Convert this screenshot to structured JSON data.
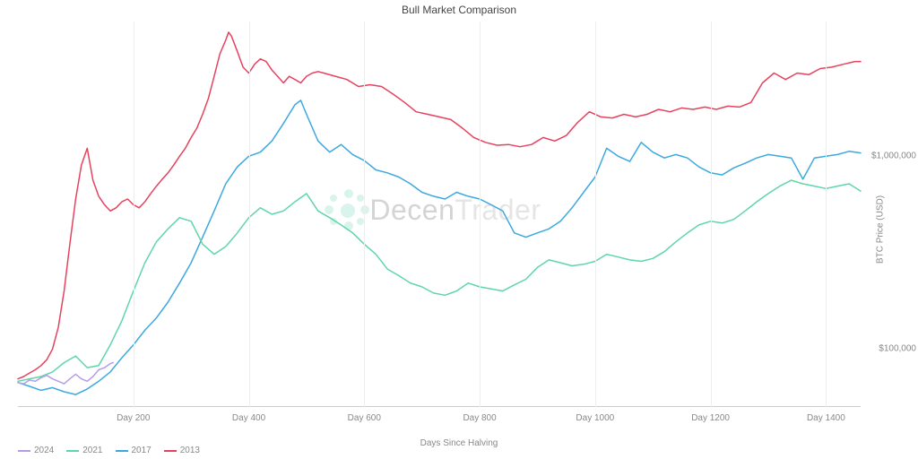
{
  "chart": {
    "type": "line",
    "title": "Bull Market Comparison",
    "title_fontsize": 12,
    "title_color": "#444444",
    "background_color": "#ffffff",
    "grid_color": "#eeeeee",
    "axis_line_color": "#cccccc",
    "tick_label_color": "#888888",
    "tick_label_fontsize": 10,
    "x_axis": {
      "title": "Days Since Halving",
      "min": 0,
      "max": 1460,
      "ticks": [
        200,
        400,
        600,
        800,
        1000,
        1200,
        1400
      ],
      "tick_labels": [
        "Day 200",
        "Day 400",
        "Day 600",
        "Day 800",
        "Day 1000",
        "Day 1200",
        "Day 1400"
      ]
    },
    "y_axis": {
      "title": "BTC Price (USD)",
      "scale": "log",
      "min": 50000,
      "max": 5000000,
      "ticks": [
        100000,
        1000000
      ],
      "tick_labels": [
        "$100,000",
        "$1,000,000"
      ]
    },
    "line_width": 1.5,
    "series": [
      {
        "name": "2013",
        "color": "#e6425e",
        "points": [
          [
            0,
            70000
          ],
          [
            10,
            72000
          ],
          [
            20,
            75000
          ],
          [
            30,
            78000
          ],
          [
            40,
            82000
          ],
          [
            50,
            88000
          ],
          [
            60,
            100000
          ],
          [
            70,
            130000
          ],
          [
            80,
            200000
          ],
          [
            90,
            350000
          ],
          [
            100,
            600000
          ],
          [
            110,
            900000
          ],
          [
            120,
            1100000
          ],
          [
            130,
            750000
          ],
          [
            140,
            620000
          ],
          [
            150,
            560000
          ],
          [
            160,
            520000
          ],
          [
            170,
            540000
          ],
          [
            180,
            580000
          ],
          [
            190,
            600000
          ],
          [
            200,
            560000
          ],
          [
            210,
            540000
          ],
          [
            220,
            580000
          ],
          [
            230,
            640000
          ],
          [
            240,
            700000
          ],
          [
            250,
            760000
          ],
          [
            260,
            820000
          ],
          [
            270,
            900000
          ],
          [
            280,
            1000000
          ],
          [
            290,
            1100000
          ],
          [
            300,
            1250000
          ],
          [
            310,
            1400000
          ],
          [
            320,
            1650000
          ],
          [
            330,
            2000000
          ],
          [
            340,
            2600000
          ],
          [
            350,
            3400000
          ],
          [
            360,
            4000000
          ],
          [
            365,
            4400000
          ],
          [
            370,
            4200000
          ],
          [
            380,
            3500000
          ],
          [
            390,
            2900000
          ],
          [
            400,
            2700000
          ],
          [
            410,
            3000000
          ],
          [
            420,
            3200000
          ],
          [
            430,
            3100000
          ],
          [
            440,
            2800000
          ],
          [
            450,
            2600000
          ],
          [
            460,
            2400000
          ],
          [
            470,
            2600000
          ],
          [
            480,
            2500000
          ],
          [
            490,
            2400000
          ],
          [
            500,
            2600000
          ],
          [
            510,
            2700000
          ],
          [
            520,
            2750000
          ],
          [
            530,
            2700000
          ],
          [
            550,
            2600000
          ],
          [
            570,
            2500000
          ],
          [
            590,
            2300000
          ],
          [
            610,
            2350000
          ],
          [
            630,
            2300000
          ],
          [
            650,
            2100000
          ],
          [
            670,
            1900000
          ],
          [
            690,
            1700000
          ],
          [
            710,
            1650000
          ],
          [
            730,
            1600000
          ],
          [
            750,
            1550000
          ],
          [
            770,
            1400000
          ],
          [
            790,
            1250000
          ],
          [
            810,
            1180000
          ],
          [
            830,
            1140000
          ],
          [
            850,
            1150000
          ],
          [
            870,
            1120000
          ],
          [
            890,
            1150000
          ],
          [
            910,
            1250000
          ],
          [
            930,
            1200000
          ],
          [
            950,
            1280000
          ],
          [
            970,
            1500000
          ],
          [
            990,
            1700000
          ],
          [
            1010,
            1600000
          ],
          [
            1030,
            1580000
          ],
          [
            1050,
            1650000
          ],
          [
            1070,
            1600000
          ],
          [
            1090,
            1650000
          ],
          [
            1110,
            1750000
          ],
          [
            1130,
            1700000
          ],
          [
            1150,
            1780000
          ],
          [
            1170,
            1750000
          ],
          [
            1190,
            1800000
          ],
          [
            1210,
            1750000
          ],
          [
            1230,
            1820000
          ],
          [
            1250,
            1800000
          ],
          [
            1270,
            1900000
          ],
          [
            1290,
            2400000
          ],
          [
            1310,
            2700000
          ],
          [
            1330,
            2500000
          ],
          [
            1350,
            2700000
          ],
          [
            1370,
            2650000
          ],
          [
            1390,
            2850000
          ],
          [
            1410,
            2900000
          ],
          [
            1430,
            3000000
          ],
          [
            1450,
            3100000
          ],
          [
            1460,
            3100000
          ]
        ]
      },
      {
        "name": "2017",
        "color": "#3ba9e0",
        "points": [
          [
            0,
            67000
          ],
          [
            20,
            64000
          ],
          [
            40,
            61000
          ],
          [
            60,
            63000
          ],
          [
            80,
            60000
          ],
          [
            100,
            58000
          ],
          [
            120,
            62000
          ],
          [
            140,
            68000
          ],
          [
            160,
            76000
          ],
          [
            180,
            90000
          ],
          [
            200,
            105000
          ],
          [
            220,
            125000
          ],
          [
            240,
            145000
          ],
          [
            260,
            175000
          ],
          [
            280,
            220000
          ],
          [
            300,
            280000
          ],
          [
            320,
            380000
          ],
          [
            340,
            520000
          ],
          [
            360,
            720000
          ],
          [
            380,
            880000
          ],
          [
            400,
            1000000
          ],
          [
            420,
            1050000
          ],
          [
            440,
            1200000
          ],
          [
            460,
            1480000
          ],
          [
            480,
            1850000
          ],
          [
            490,
            1950000
          ],
          [
            500,
            1650000
          ],
          [
            520,
            1200000
          ],
          [
            540,
            1050000
          ],
          [
            560,
            1150000
          ],
          [
            580,
            1020000
          ],
          [
            600,
            950000
          ],
          [
            620,
            850000
          ],
          [
            640,
            820000
          ],
          [
            660,
            780000
          ],
          [
            680,
            720000
          ],
          [
            700,
            650000
          ],
          [
            720,
            620000
          ],
          [
            740,
            600000
          ],
          [
            760,
            650000
          ],
          [
            780,
            620000
          ],
          [
            800,
            600000
          ],
          [
            820,
            560000
          ],
          [
            840,
            520000
          ],
          [
            860,
            400000
          ],
          [
            880,
            380000
          ],
          [
            900,
            400000
          ],
          [
            920,
            420000
          ],
          [
            940,
            460000
          ],
          [
            960,
            540000
          ],
          [
            980,
            650000
          ],
          [
            1000,
            780000
          ],
          [
            1020,
            1100000
          ],
          [
            1040,
            1000000
          ],
          [
            1060,
            940000
          ],
          [
            1080,
            1180000
          ],
          [
            1100,
            1050000
          ],
          [
            1120,
            980000
          ],
          [
            1140,
            1020000
          ],
          [
            1160,
            980000
          ],
          [
            1180,
            880000
          ],
          [
            1200,
            820000
          ],
          [
            1220,
            800000
          ],
          [
            1240,
            870000
          ],
          [
            1260,
            920000
          ],
          [
            1280,
            980000
          ],
          [
            1300,
            1020000
          ],
          [
            1320,
            1000000
          ],
          [
            1340,
            980000
          ],
          [
            1360,
            760000
          ],
          [
            1380,
            980000
          ],
          [
            1400,
            1000000
          ],
          [
            1420,
            1020000
          ],
          [
            1440,
            1060000
          ],
          [
            1460,
            1040000
          ]
        ]
      },
      {
        "name": "2021",
        "color": "#5ed6a8",
        "points": [
          [
            0,
            68000
          ],
          [
            20,
            70000
          ],
          [
            40,
            72000
          ],
          [
            60,
            76000
          ],
          [
            80,
            85000
          ],
          [
            100,
            92000
          ],
          [
            120,
            80000
          ],
          [
            140,
            82000
          ],
          [
            160,
            105000
          ],
          [
            180,
            140000
          ],
          [
            200,
            200000
          ],
          [
            220,
            280000
          ],
          [
            240,
            360000
          ],
          [
            260,
            420000
          ],
          [
            280,
            480000
          ],
          [
            300,
            460000
          ],
          [
            320,
            350000
          ],
          [
            340,
            310000
          ],
          [
            360,
            340000
          ],
          [
            380,
            400000
          ],
          [
            400,
            480000
          ],
          [
            420,
            540000
          ],
          [
            440,
            500000
          ],
          [
            460,
            520000
          ],
          [
            480,
            580000
          ],
          [
            500,
            640000
          ],
          [
            520,
            520000
          ],
          [
            540,
            480000
          ],
          [
            560,
            440000
          ],
          [
            580,
            400000
          ],
          [
            600,
            350000
          ],
          [
            620,
            310000
          ],
          [
            640,
            260000
          ],
          [
            660,
            240000
          ],
          [
            680,
            220000
          ],
          [
            700,
            210000
          ],
          [
            720,
            195000
          ],
          [
            740,
            190000
          ],
          [
            760,
            200000
          ],
          [
            780,
            220000
          ],
          [
            800,
            210000
          ],
          [
            820,
            205000
          ],
          [
            840,
            200000
          ],
          [
            860,
            215000
          ],
          [
            880,
            230000
          ],
          [
            900,
            265000
          ],
          [
            920,
            290000
          ],
          [
            940,
            280000
          ],
          [
            960,
            270000
          ],
          [
            980,
            275000
          ],
          [
            1000,
            285000
          ],
          [
            1020,
            310000
          ],
          [
            1040,
            300000
          ],
          [
            1060,
            290000
          ],
          [
            1080,
            285000
          ],
          [
            1100,
            295000
          ],
          [
            1120,
            320000
          ],
          [
            1140,
            360000
          ],
          [
            1160,
            400000
          ],
          [
            1180,
            440000
          ],
          [
            1200,
            460000
          ],
          [
            1220,
            450000
          ],
          [
            1240,
            470000
          ],
          [
            1260,
            520000
          ],
          [
            1280,
            580000
          ],
          [
            1300,
            640000
          ],
          [
            1320,
            700000
          ],
          [
            1340,
            750000
          ],
          [
            1360,
            720000
          ],
          [
            1380,
            700000
          ],
          [
            1400,
            680000
          ],
          [
            1420,
            700000
          ],
          [
            1440,
            720000
          ],
          [
            1460,
            660000
          ]
        ]
      },
      {
        "name": "2024",
        "color": "#b69ce8",
        "points": [
          [
            0,
            67000
          ],
          [
            10,
            66000
          ],
          [
            20,
            69000
          ],
          [
            30,
            68000
          ],
          [
            40,
            71000
          ],
          [
            50,
            73000
          ],
          [
            60,
            70000
          ],
          [
            70,
            68000
          ],
          [
            80,
            66000
          ],
          [
            90,
            70000
          ],
          [
            100,
            74000
          ],
          [
            110,
            70000
          ],
          [
            120,
            68000
          ],
          [
            130,
            72000
          ],
          [
            140,
            78000
          ],
          [
            150,
            80000
          ],
          [
            160,
            84000
          ],
          [
            165,
            85000
          ]
        ]
      }
    ],
    "legend": {
      "position": "bottom-left",
      "items": [
        {
          "label": "2024",
          "color": "#b69ce8"
        },
        {
          "label": "2021",
          "color": "#5ed6a8"
        },
        {
          "label": "2017",
          "color": "#3ba9e0"
        },
        {
          "label": "2013",
          "color": "#e6425e"
        }
      ]
    },
    "watermark": {
      "text_part1": "Decen",
      "text_part2": "Trader",
      "color1": "rgba(120,120,120,0.32)",
      "color2": "rgba(160,160,160,0.28)",
      "dot_color": "rgba(100,210,180,0.25)",
      "fontsize": 32
    }
  }
}
